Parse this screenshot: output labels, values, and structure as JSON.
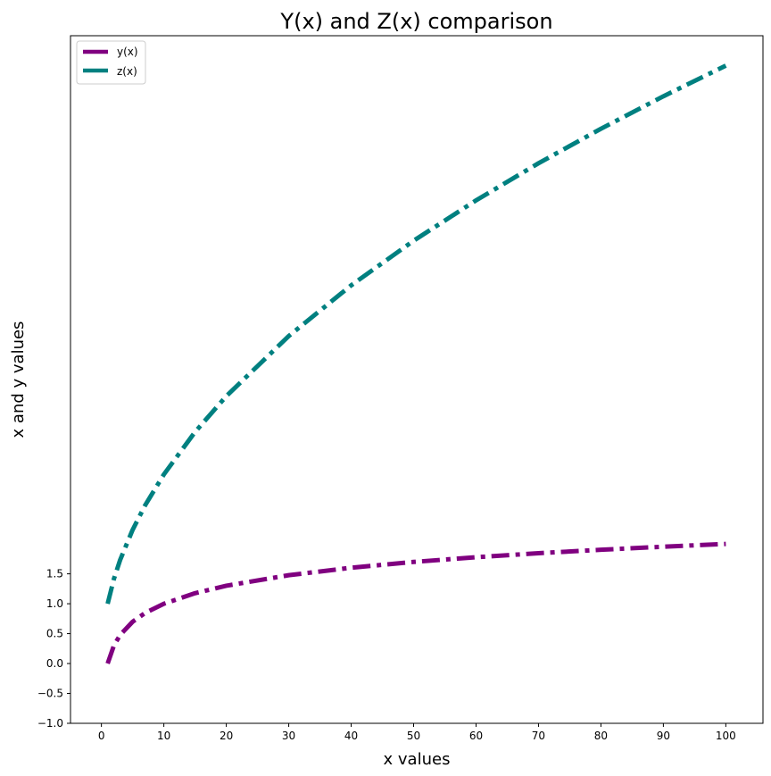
{
  "chart_data": {
    "type": "line",
    "title": "Y(x) and Z(x) comparison",
    "xlabel": "x values",
    "ylabel": "x and y values",
    "xlim": [
      -4.95,
      105.95
    ],
    "ylim": [
      -1.0,
      10.5
    ],
    "x_ticks": [
      "0",
      "10",
      "20",
      "30",
      "40",
      "50",
      "60",
      "70",
      "80",
      "90",
      "100"
    ],
    "x_tick_values": [
      0,
      10,
      20,
      30,
      40,
      50,
      60,
      70,
      80,
      90,
      100
    ],
    "y_ticks": [
      "−1.0",
      "−0.5",
      "0.0",
      "0.5",
      "1.0",
      "1.5"
    ],
    "y_tick_values": [
      -1.0,
      -0.5,
      0.0,
      0.5,
      1.0,
      1.5
    ],
    "grid": false,
    "legend_position": "upper-left",
    "series": [
      {
        "name": "y(x)",
        "color": "#800080",
        "line_style": "dashdot",
        "x": [
          1,
          2,
          3,
          5,
          7,
          10,
          15,
          20,
          30,
          40,
          50,
          60,
          70,
          80,
          90,
          100
        ],
        "values": [
          0.0,
          0.301,
          0.477,
          0.699,
          0.845,
          1.0,
          1.176,
          1.301,
          1.477,
          1.602,
          1.699,
          1.778,
          1.845,
          1.903,
          1.954,
          2.0
        ]
      },
      {
        "name": "z(x)",
        "color": "#008080",
        "line_style": "dashdot",
        "x": [
          1,
          2,
          3,
          5,
          7,
          10,
          15,
          20,
          30,
          40,
          50,
          60,
          70,
          80,
          90,
          100
        ],
        "values": [
          1.0,
          1.414,
          1.732,
          2.236,
          2.646,
          3.162,
          3.873,
          4.472,
          5.477,
          6.325,
          7.071,
          7.746,
          8.367,
          8.944,
          9.487,
          10.0
        ]
      }
    ]
  }
}
